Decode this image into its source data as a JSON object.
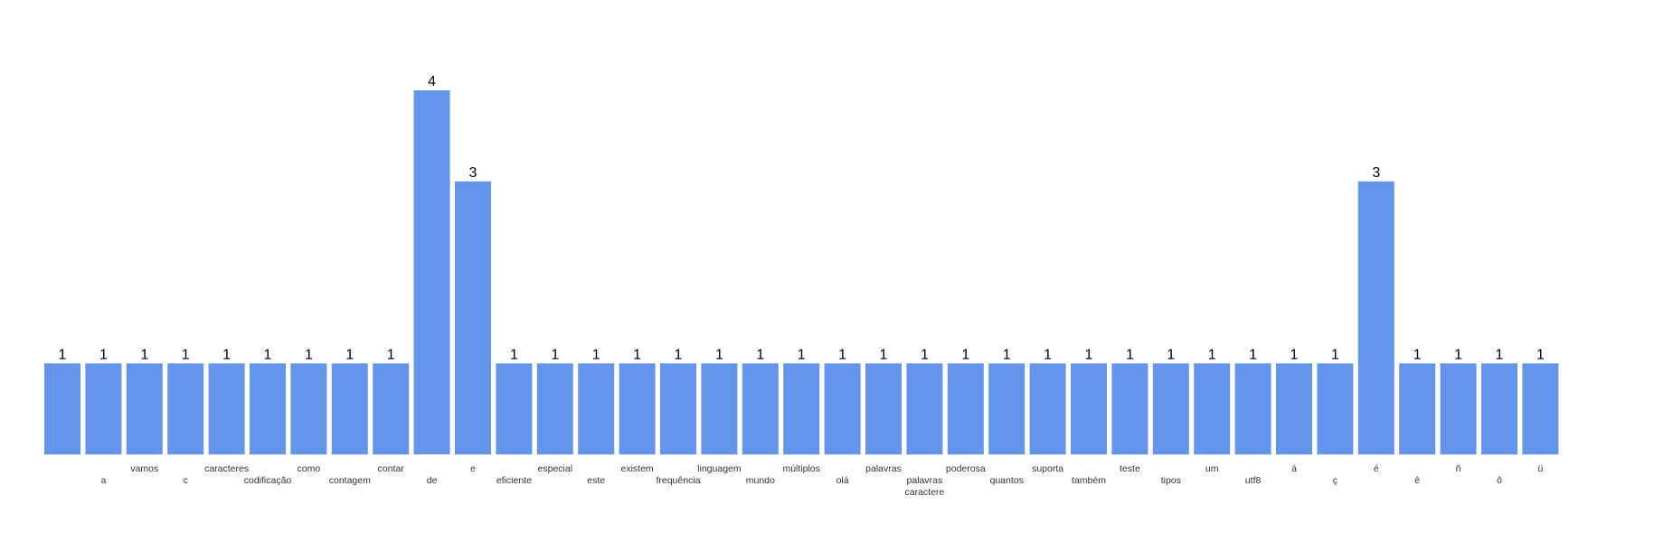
{
  "chart_data": {
    "type": "bar",
    "categories": [
      "",
      "a",
      "vamos",
      "c",
      "caracteres",
      "codificação",
      "como",
      "contagem",
      "contar",
      "de",
      "e",
      "eficiente",
      "especial",
      "este",
      "existem",
      "frequência",
      "linguagem",
      "mundo",
      "múltiplos",
      "olá",
      "palavras",
      "palavras\ncaractere",
      "poderosa",
      "quantos",
      "suporta",
      "também",
      "teste",
      "tipos",
      "um",
      "utf8",
      "á",
      "ç",
      "é",
      "ê",
      "ñ",
      "ô",
      "ü"
    ],
    "values": [
      1,
      1,
      1,
      1,
      1,
      1,
      1,
      1,
      1,
      4,
      3,
      1,
      1,
      1,
      1,
      1,
      1,
      1,
      1,
      1,
      1,
      1,
      1,
      1,
      1,
      1,
      1,
      1,
      1,
      1,
      1,
      1,
      3,
      1,
      1,
      1,
      1
    ],
    "ylim": [
      0,
      4
    ],
    "title": "",
    "xlabel": "",
    "ylabel": "",
    "grid": false,
    "bar_color": "#6495ED"
  }
}
